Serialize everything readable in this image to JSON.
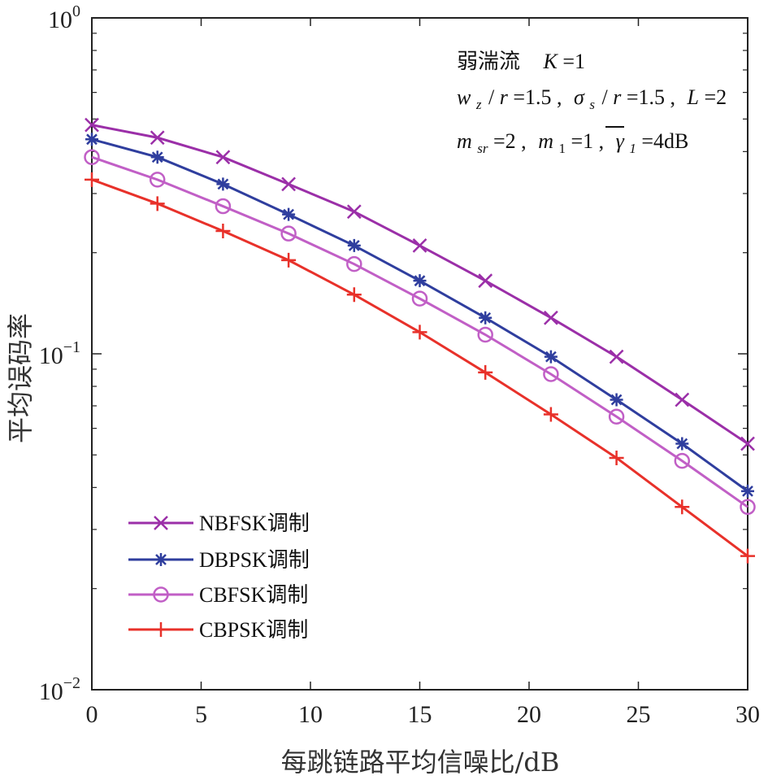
{
  "chart_data": {
    "type": "line",
    "title": "",
    "xlabel": "每跳链路平均信噪比/dB",
    "ylabel": "平均误码率",
    "xlim": [
      0,
      30
    ],
    "ylim": [
      0.01,
      1
    ],
    "yscale": "log",
    "x_ticks": [
      "0",
      "5",
      "10",
      "15",
      "20",
      "25",
      "30"
    ],
    "y_ticks": [
      {
        "base": "10",
        "exp": "0"
      },
      {
        "base": "10",
        "exp": "−1"
      },
      {
        "base": "10",
        "exp": "−2"
      }
    ],
    "grid": false,
    "legend_position": "lower-left",
    "x": [
      0,
      3,
      6,
      9,
      12,
      15,
      18,
      21,
      24,
      27,
      30
    ],
    "series": [
      {
        "name": "NBFSK调制",
        "marker": "x",
        "color": "#9b2fa8",
        "values": [
          0.48,
          0.44,
          0.385,
          0.32,
          0.265,
          0.21,
          0.165,
          0.128,
          0.098,
          0.073,
          0.054
        ]
      },
      {
        "name": "DBPSK调制",
        "marker": "asterisk",
        "color": "#2f3e9e",
        "values": [
          0.435,
          0.385,
          0.32,
          0.26,
          0.21,
          0.165,
          0.128,
          0.098,
          0.073,
          0.054,
          0.039
        ]
      },
      {
        "name": "CBFSK调制",
        "marker": "circle",
        "color": "#c15fc6",
        "values": [
          0.385,
          0.33,
          0.275,
          0.228,
          0.185,
          0.146,
          0.114,
          0.087,
          0.065,
          0.048,
          0.035
        ]
      },
      {
        "name": "CBPSK调制",
        "marker": "plus",
        "color": "#e8312a",
        "values": [
          0.33,
          0.28,
          0.232,
          0.19,
          0.15,
          0.116,
          0.088,
          0.066,
          0.049,
          0.035,
          0.025
        ]
      }
    ],
    "annotations": {
      "line1": {
        "label": "弱湍流",
        "k_var": "K",
        "k_eq": " =1"
      },
      "line2": {
        "p1_var": "w",
        "p1_sub": "z",
        "p1_rest": "/",
        "p1_var2": "r",
        "p1_eq": "=1.5 ,",
        "p2_var": "σ",
        "p2_sub": "s",
        "p2_rest": "/",
        "p2_var2": "r",
        "p2_eq": "=1.5 ,",
        "p3_var": "L",
        "p3_eq": "=2"
      },
      "line3": {
        "m_var": "m",
        "m_sub": "sr",
        "m_eq": "=2 ,",
        "m1_var": "m",
        "m1_sub": "1",
        "m1_eq": "=1 ,",
        "g_var": "γ",
        "g_sub": "1",
        "g_eq": "=4dB"
      }
    }
  }
}
